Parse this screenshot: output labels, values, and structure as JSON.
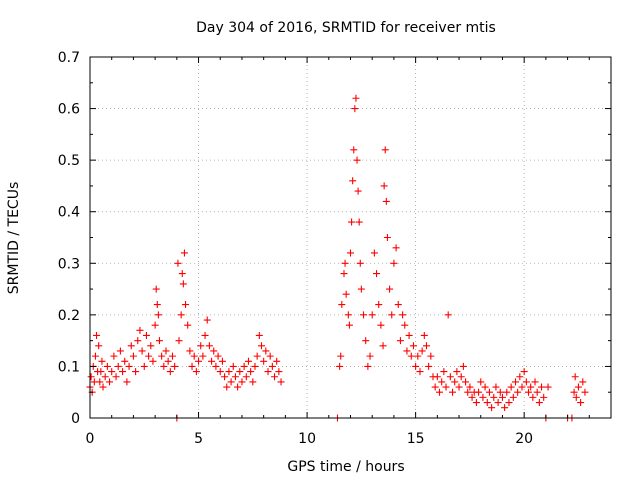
{
  "chart_data": {
    "type": "scatter",
    "title": "Day 304 of 2016, SRMTID for receiver mtis",
    "xlabel": "GPS time / hours",
    "ylabel": "SRMTID / TECUs",
    "xlim": [
      0,
      24
    ],
    "ylim": [
      0,
      0.7
    ],
    "grid": true,
    "x_ticks": [
      0,
      5,
      10,
      15,
      20
    ],
    "x_tick_labels": [
      "0",
      "5",
      "10",
      "15",
      "20"
    ],
    "y_ticks": [
      0,
      0.1,
      0.2,
      0.3,
      0.4,
      0.5,
      0.6,
      0.7
    ],
    "y_tick_labels": [
      "0",
      "0.1",
      "0.2",
      "0.3",
      "0.4",
      "0.5",
      "0.6",
      "0.7"
    ],
    "marker": "+",
    "color": "#ff0000",
    "series": [
      {
        "name": "SRMTID",
        "points": [
          [
            0.0,
            0.06
          ],
          [
            0.05,
            0.08
          ],
          [
            0.1,
            0.05
          ],
          [
            0.15,
            0.1
          ],
          [
            0.2,
            0.07
          ],
          [
            0.25,
            0.12
          ],
          [
            0.3,
            0.16
          ],
          [
            0.35,
            0.09
          ],
          [
            0.4,
            0.14
          ],
          [
            0.45,
            0.07
          ],
          [
            0.5,
            0.09
          ],
          [
            0.55,
            0.11
          ],
          [
            0.6,
            0.06
          ],
          [
            0.7,
            0.08
          ],
          [
            0.8,
            0.1
          ],
          [
            0.9,
            0.07
          ],
          [
            1.0,
            0.09
          ],
          [
            1.1,
            0.12
          ],
          [
            1.2,
            0.08
          ],
          [
            1.3,
            0.1
          ],
          [
            1.4,
            0.13
          ],
          [
            1.5,
            0.09
          ],
          [
            1.6,
            0.11
          ],
          [
            1.7,
            0.07
          ],
          [
            1.8,
            0.1
          ],
          [
            1.9,
            0.14
          ],
          [
            2.0,
            0.12
          ],
          [
            2.1,
            0.09
          ],
          [
            2.2,
            0.15
          ],
          [
            2.3,
            0.17
          ],
          [
            2.4,
            0.13
          ],
          [
            2.5,
            0.1
          ],
          [
            2.6,
            0.16
          ],
          [
            2.7,
            0.12
          ],
          [
            2.8,
            0.14
          ],
          [
            2.9,
            0.11
          ],
          [
            3.0,
            0.18
          ],
          [
            3.05,
            0.25
          ],
          [
            3.1,
            0.22
          ],
          [
            3.15,
            0.2
          ],
          [
            3.2,
            0.15
          ],
          [
            3.3,
            0.12
          ],
          [
            3.4,
            0.1
          ],
          [
            3.5,
            0.13
          ],
          [
            3.6,
            0.11
          ],
          [
            3.7,
            0.09
          ],
          [
            3.8,
            0.12
          ],
          [
            3.9,
            0.1
          ],
          [
            4.0,
            0.0
          ],
          [
            4.05,
            0.3
          ],
          [
            4.1,
            0.15
          ],
          [
            4.2,
            0.2
          ],
          [
            4.25,
            0.28
          ],
          [
            4.3,
            0.26
          ],
          [
            4.35,
            0.32
          ],
          [
            4.4,
            0.22
          ],
          [
            4.5,
            0.18
          ],
          [
            4.6,
            0.13
          ],
          [
            4.7,
            0.1
          ],
          [
            4.8,
            0.12
          ],
          [
            4.9,
            0.09
          ],
          [
            5.0,
            0.11
          ],
          [
            5.1,
            0.14
          ],
          [
            5.2,
            0.12
          ],
          [
            5.3,
            0.16
          ],
          [
            5.4,
            0.19
          ],
          [
            5.5,
            0.14
          ],
          [
            5.6,
            0.11
          ],
          [
            5.7,
            0.13
          ],
          [
            5.8,
            0.1
          ],
          [
            5.9,
            0.12
          ],
          [
            6.0,
            0.09
          ],
          [
            6.1,
            0.11
          ],
          [
            6.2,
            0.08
          ],
          [
            6.3,
            0.06
          ],
          [
            6.4,
            0.09
          ],
          [
            6.5,
            0.07
          ],
          [
            6.6,
            0.1
          ],
          [
            6.7,
            0.08
          ],
          [
            6.8,
            0.06
          ],
          [
            6.9,
            0.09
          ],
          [
            7.0,
            0.07
          ],
          [
            7.1,
            0.1
          ],
          [
            7.2,
            0.08
          ],
          [
            7.3,
            0.11
          ],
          [
            7.4,
            0.09
          ],
          [
            7.5,
            0.07
          ],
          [
            7.6,
            0.1
          ],
          [
            7.7,
            0.12
          ],
          [
            7.8,
            0.16
          ],
          [
            7.9,
            0.14
          ],
          [
            8.0,
            0.11
          ],
          [
            8.1,
            0.13
          ],
          [
            8.2,
            0.09
          ],
          [
            8.3,
            0.12
          ],
          [
            8.4,
            0.1
          ],
          [
            8.5,
            0.08
          ],
          [
            8.6,
            0.11
          ],
          [
            8.7,
            0.09
          ],
          [
            8.8,
            0.07
          ],
          [
            11.4,
            0.0
          ],
          [
            11.5,
            0.1
          ],
          [
            11.55,
            0.12
          ],
          [
            11.6,
            0.22
          ],
          [
            11.7,
            0.28
          ],
          [
            11.75,
            0.3
          ],
          [
            11.8,
            0.24
          ],
          [
            11.9,
            0.2
          ],
          [
            11.95,
            0.18
          ],
          [
            12.0,
            0.32
          ],
          [
            12.05,
            0.38
          ],
          [
            12.1,
            0.46
          ],
          [
            12.15,
            0.52
          ],
          [
            12.2,
            0.6
          ],
          [
            12.25,
            0.62
          ],
          [
            12.3,
            0.5
          ],
          [
            12.35,
            0.44
          ],
          [
            12.4,
            0.38
          ],
          [
            12.45,
            0.3
          ],
          [
            12.5,
            0.25
          ],
          [
            12.6,
            0.2
          ],
          [
            12.7,
            0.15
          ],
          [
            12.8,
            0.1
          ],
          [
            12.9,
            0.12
          ],
          [
            13.0,
            0.2
          ],
          [
            13.1,
            0.32
          ],
          [
            13.2,
            0.28
          ],
          [
            13.3,
            0.22
          ],
          [
            13.4,
            0.18
          ],
          [
            13.5,
            0.14
          ],
          [
            13.55,
            0.45
          ],
          [
            13.6,
            0.52
          ],
          [
            13.65,
            0.42
          ],
          [
            13.7,
            0.35
          ],
          [
            13.8,
            0.25
          ],
          [
            13.9,
            0.2
          ],
          [
            14.0,
            0.3
          ],
          [
            14.1,
            0.33
          ],
          [
            14.2,
            0.22
          ],
          [
            14.3,
            0.15
          ],
          [
            14.4,
            0.2
          ],
          [
            14.5,
            0.18
          ],
          [
            14.6,
            0.13
          ],
          [
            14.7,
            0.16
          ],
          [
            14.8,
            0.12
          ],
          [
            14.9,
            0.14
          ],
          [
            15.0,
            0.1
          ],
          [
            15.1,
            0.12
          ],
          [
            15.2,
            0.09
          ],
          [
            15.3,
            0.13
          ],
          [
            15.4,
            0.16
          ],
          [
            15.5,
            0.14
          ],
          [
            15.6,
            0.1
          ],
          [
            15.7,
            0.12
          ],
          [
            15.8,
            0.08
          ],
          [
            15.9,
            0.06
          ],
          [
            16.0,
            0.08
          ],
          [
            16.1,
            0.05
          ],
          [
            16.2,
            0.07
          ],
          [
            16.3,
            0.09
          ],
          [
            16.4,
            0.06
          ],
          [
            16.5,
            0.2
          ],
          [
            16.6,
            0.08
          ],
          [
            16.7,
            0.05
          ],
          [
            16.8,
            0.07
          ],
          [
            16.9,
            0.09
          ],
          [
            17.0,
            0.06
          ],
          [
            17.1,
            0.08
          ],
          [
            17.2,
            0.1
          ],
          [
            17.3,
            0.07
          ],
          [
            17.4,
            0.05
          ],
          [
            17.5,
            0.06
          ],
          [
            17.6,
            0.04
          ],
          [
            17.7,
            0.05
          ],
          [
            17.8,
            0.03
          ],
          [
            17.9,
            0.05
          ],
          [
            18.0,
            0.07
          ],
          [
            18.1,
            0.04
          ],
          [
            18.2,
            0.06
          ],
          [
            18.3,
            0.03
          ],
          [
            18.4,
            0.05
          ],
          [
            18.5,
            0.02
          ],
          [
            18.6,
            0.04
          ],
          [
            18.7,
            0.06
          ],
          [
            18.8,
            0.03
          ],
          [
            18.9,
            0.05
          ],
          [
            19.0,
            0.04
          ],
          [
            19.1,
            0.02
          ],
          [
            19.2,
            0.05
          ],
          [
            19.3,
            0.03
          ],
          [
            19.4,
            0.06
          ],
          [
            19.5,
            0.04
          ],
          [
            19.6,
            0.07
          ],
          [
            19.7,
            0.05
          ],
          [
            19.8,
            0.08
          ],
          [
            19.9,
            0.06
          ],
          [
            20.0,
            0.09
          ],
          [
            20.1,
            0.07
          ],
          [
            20.2,
            0.05
          ],
          [
            20.3,
            0.06
          ],
          [
            20.4,
            0.04
          ],
          [
            20.5,
            0.07
          ],
          [
            20.6,
            0.05
          ],
          [
            20.7,
            0.03
          ],
          [
            20.8,
            0.06
          ],
          [
            20.9,
            0.04
          ],
          [
            21.0,
            0.0
          ],
          [
            21.1,
            0.06
          ],
          [
            22.0,
            0.0
          ],
          [
            22.2,
            0.0
          ],
          [
            22.3,
            0.05
          ],
          [
            22.35,
            0.08
          ],
          [
            22.4,
            0.04
          ],
          [
            22.5,
            0.06
          ],
          [
            22.6,
            0.03
          ],
          [
            22.7,
            0.07
          ],
          [
            22.8,
            0.05
          ]
        ]
      }
    ]
  }
}
